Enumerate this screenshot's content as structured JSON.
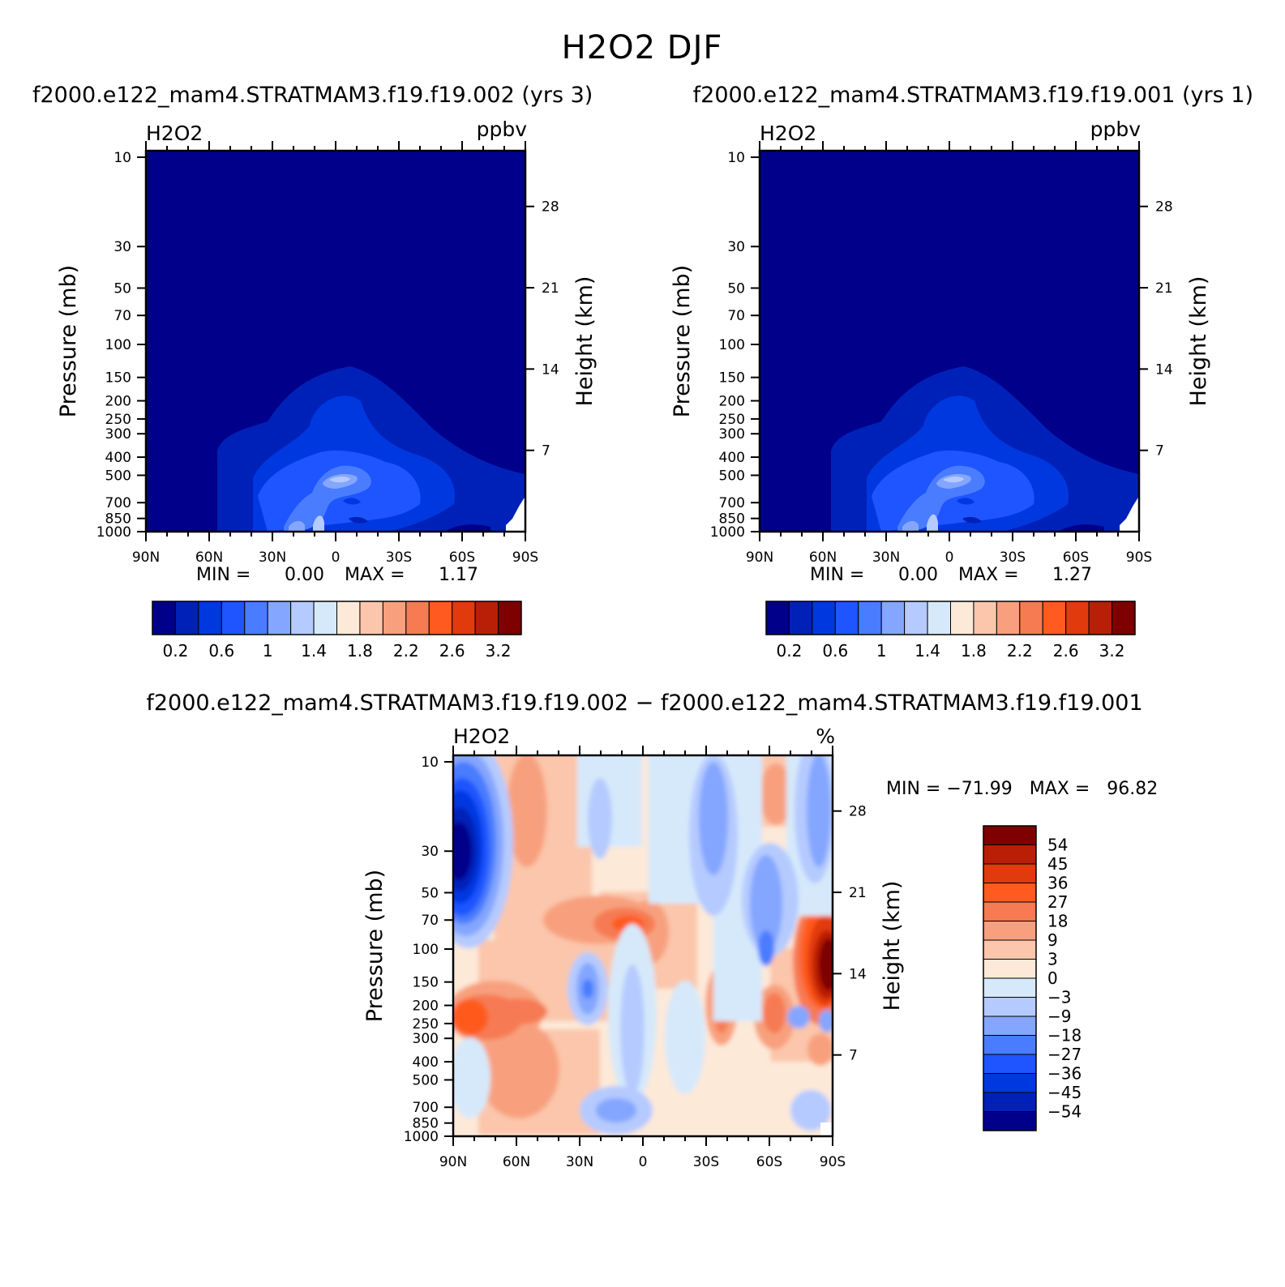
{
  "title": "H2O2 DJF",
  "colors": {
    "abs_levels": [
      "#00008b",
      "#0021b8",
      "#0038e0",
      "#1e55ff",
      "#4a7cff",
      "#84a6ff",
      "#b5caff",
      "#d6e9fb",
      "#fde9d8",
      "#fbc6ab",
      "#f8a07e",
      "#f67a52",
      "#ff5a1f",
      "#e13a0c",
      "#b81f06",
      "#7e0000"
    ],
    "diff_levels": [
      "#00008b",
      "#0021b8",
      "#0038e0",
      "#1e55ff",
      "#4a7cff",
      "#84a6ff",
      "#b5caff",
      "#d6e9fb",
      "#fde9d8",
      "#fbc6ab",
      "#f8a07e",
      "#f67a52",
      "#ff5a1f",
      "#e13a0c",
      "#b81f06",
      "#7e0000"
    ]
  },
  "panels": {
    "p1": {
      "subtitle": "f2000.e122_mam4.STRATMAM3.f19.f19.002 (yrs 3)",
      "var": "H2O2",
      "units": "ppbv",
      "ylabel": "Pressure (mb)",
      "y2label": "Height (km)",
      "min_label": "MIN =",
      "min_value": "0.00",
      "max_label": "MAX =",
      "max_value": "1.17",
      "colorbar_labels": [
        "0.2",
        "0.6",
        "1",
        "1.4",
        "1.8",
        "2.2",
        "2.6",
        "3.2"
      ]
    },
    "p2": {
      "subtitle": "f2000.e122_mam4.STRATMAM3.f19.f19.001 (yrs 1)",
      "var": "H2O2",
      "units": "ppbv",
      "ylabel": "Pressure (mb)",
      "y2label": "Height (km)",
      "min_label": "MIN =",
      "min_value": "0.00",
      "max_label": "MAX =",
      "max_value": "1.27",
      "colorbar_labels": [
        "0.2",
        "0.6",
        "1",
        "1.4",
        "1.8",
        "2.2",
        "2.6",
        "3.2"
      ]
    },
    "p3": {
      "subtitle": "f2000.e122_mam4.STRATMAM3.f19.f19.002 − f2000.e122_mam4.STRATMAM3.f19.f19.001",
      "var": "H2O2",
      "units": "%",
      "ylabel": "Pressure (mb)",
      "y2label": "Height (km)",
      "minmax": "MIN = −71.99   MAX =   96.82",
      "colorbar_labels": [
        "54",
        "45",
        "36",
        "27",
        "18",
        "9",
        "3",
        "0",
        "−3",
        "−9",
        "−18",
        "−27",
        "−36",
        "−45",
        "−54"
      ]
    }
  },
  "axes": {
    "x_ticks": [
      "90N",
      "60N",
      "30N",
      "0",
      "30S",
      "60S",
      "90S"
    ],
    "p_ticks": [
      "10",
      "30",
      "50",
      "70",
      "100",
      "150",
      "200",
      "250",
      "300",
      "400",
      "500",
      "700",
      "850",
      "1000"
    ],
    "z_ticks": [
      "28",
      "21",
      "14",
      "7"
    ]
  },
  "chart_data": [
    {
      "type": "heatmap",
      "title": "H2O2 DJF",
      "subtitle": "f2000.e122_mam4.STRATMAM3.f19.f19.002 (yrs 3)",
      "ylabel": "Pressure (mb)",
      "y2label": "Height (km)",
      "units": "ppbv",
      "x": [
        "90N",
        "60N",
        "30N",
        "0",
        "30S",
        "60S",
        "90S"
      ],
      "y_pressure": [
        10,
        30,
        50,
        70,
        100,
        150,
        200,
        250,
        300,
        400,
        500,
        700,
        850,
        1000
      ],
      "y_height": [
        28,
        21,
        14,
        7
      ],
      "ylim": [
        1000,
        10
      ],
      "levels": [
        0.2,
        0.4,
        0.6,
        0.8,
        1,
        1.2,
        1.4,
        1.6,
        1.8,
        2,
        2.2,
        2.4,
        2.6,
        2.8,
        3.2
      ],
      "min": 0.0,
      "max": 1.17
    },
    {
      "type": "heatmap",
      "title": "H2O2 DJF",
      "subtitle": "f2000.e122_mam4.STRATMAM3.f19.f19.001 (yrs 1)",
      "ylabel": "Pressure (mb)",
      "y2label": "Height (km)",
      "units": "ppbv",
      "x": [
        "90N",
        "60N",
        "30N",
        "0",
        "30S",
        "60S",
        "90S"
      ],
      "y_pressure": [
        10,
        30,
        50,
        70,
        100,
        150,
        200,
        250,
        300,
        400,
        500,
        700,
        850,
        1000
      ],
      "y_height": [
        28,
        21,
        14,
        7
      ],
      "ylim": [
        1000,
        10
      ],
      "levels": [
        0.2,
        0.4,
        0.6,
        0.8,
        1,
        1.2,
        1.4,
        1.6,
        1.8,
        2,
        2.2,
        2.4,
        2.6,
        2.8,
        3.2
      ],
      "min": 0.0,
      "max": 1.27
    },
    {
      "type": "heatmap",
      "title": "H2O2 DJF",
      "subtitle": "f2000.e122_mam4.STRATMAM3.f19.f19.002 − f2000.e122_mam4.STRATMAM3.f19.f19.001",
      "ylabel": "Pressure (mb)",
      "y2label": "Height (km)",
      "units": "%",
      "x": [
        "90N",
        "60N",
        "30N",
        "0",
        "30S",
        "60S",
        "90S"
      ],
      "y_pressure": [
        10,
        30,
        50,
        70,
        100,
        150,
        200,
        250,
        300,
        400,
        500,
        700,
        850,
        1000
      ],
      "y_height": [
        28,
        21,
        14,
        7
      ],
      "ylim": [
        1000,
        10
      ],
      "levels": [
        -54,
        -45,
        -36,
        -27,
        -18,
        -9,
        -3,
        0,
        3,
        9,
        18,
        27,
        36,
        45,
        54
      ],
      "min": -71.99,
      "max": 96.82
    }
  ]
}
